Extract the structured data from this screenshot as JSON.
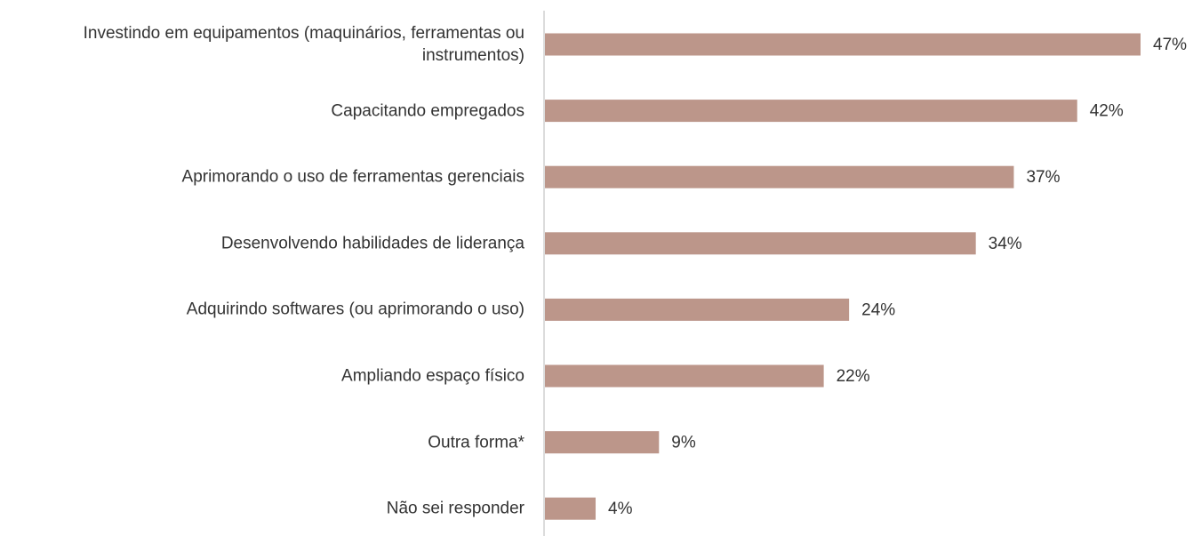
{
  "chart_data": {
    "type": "barh",
    "categories": [
      "Investindo em equipamentos (maquinários, ferramentas ou instrumentos)",
      "Capacitando empregados",
      "Aprimorando o uso de ferramentas gerenciais",
      "Desenvolvendo habilidades de liderança",
      "Adquirindo softwares (ou aprimorando o uso)",
      "Ampliando espaço físico",
      "Outra forma*",
      "Não sei responder"
    ],
    "values": [
      47,
      42,
      37,
      34,
      24,
      22,
      9,
      4
    ],
    "value_labels": [
      "47%",
      "42%",
      "37%",
      "34%",
      "24%",
      "22%",
      "9%",
      "4%"
    ],
    "color": "#bc968a"
  }
}
